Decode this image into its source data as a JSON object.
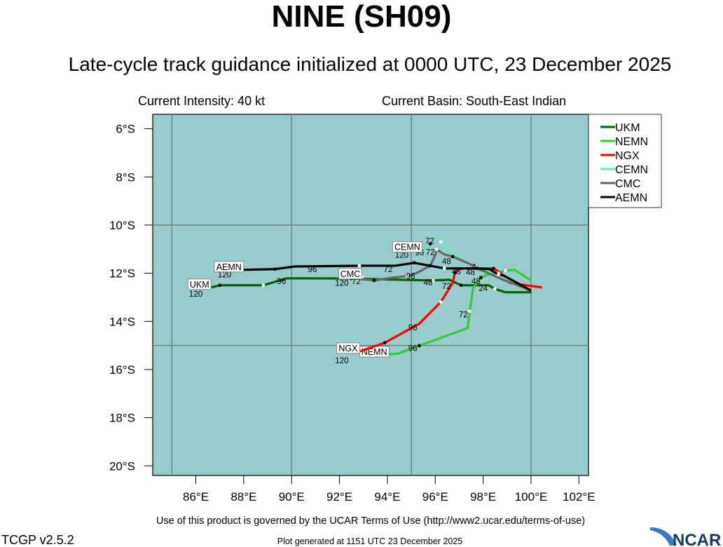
{
  "title": "NINE (SH09)",
  "subtitle": "Late-cycle track guidance initialized at 0000 UTC, 23 December 2025",
  "intensity": "Current Intensity: 40 kt",
  "basin": "Current Basin: South-East Indian",
  "footer": {
    "terms": "Use of this product is governed by the UCAR Terms of Use (http://www2.ucar.edu/terms-of-use)",
    "version": "TCGP v2.5.2",
    "generated": "Plot generated at 1151 UTC   23 December 2025",
    "logo": "NCAR"
  },
  "colors": {
    "ocean": "#98cccc",
    "grid": "#6a7a7a"
  },
  "axes": {
    "lon_range": [
      84.2,
      102.4
    ],
    "lat_range": [
      5.4,
      20.4
    ],
    "lon_ticks": [
      "86°E",
      "88°E",
      "90°E",
      "92°E",
      "94°E",
      "96°E",
      "98°E",
      "100°E",
      "102°E"
    ],
    "lon_tick_values": [
      86,
      88,
      90,
      92,
      94,
      96,
      98,
      100,
      102
    ],
    "lat_ticks": [
      "6°S",
      "8°S",
      "10°S",
      "12°S",
      "14°S",
      "16°S",
      "18°S",
      "20°S"
    ],
    "lat_tick_values": [
      6,
      8,
      10,
      12,
      14,
      16,
      18,
      20
    ],
    "grid_lon": [
      85,
      90,
      95,
      100
    ],
    "grid_lat": [
      10,
      15
    ]
  },
  "tracks": [
    {
      "name": "UKM",
      "color": "#006400",
      "points": [
        [
          100.02,
          12.79
        ],
        [
          98.93,
          12.79
        ],
        [
          98.49,
          12.65
        ],
        [
          98.23,
          12.5
        ],
        [
          97.08,
          12.5
        ],
        [
          96.59,
          12.27
        ],
        [
          95.91,
          12.3
        ],
        [
          94.39,
          12.27
        ],
        [
          92.5,
          12.22
        ],
        [
          89.81,
          12.21
        ],
        [
          88.82,
          12.5
        ],
        [
          88.11,
          12.5
        ],
        [
          87.0,
          12.5
        ],
        [
          86.65,
          12.59
        ]
      ],
      "labels": [
        {
          "text": "24",
          "lon": 98.0,
          "lat": 12.63
        },
        {
          "text": "48",
          "lon": 95.7,
          "lat": 12.38
        },
        {
          "text": "96",
          "lon": 89.58,
          "lat": 12.33
        },
        {
          "text": "120",
          "lon": 86.0,
          "lat": 12.85
        }
      ]
    },
    {
      "name": "NEMN",
      "color": "#33cc33",
      "points": [
        [
          100.0,
          12.3
        ],
        [
          99.31,
          11.86
        ],
        [
          98.93,
          11.89
        ],
        [
          98.26,
          12.03
        ],
        [
          97.91,
          12.18
        ],
        [
          97.58,
          12.62
        ],
        [
          97.44,
          13.58
        ],
        [
          97.35,
          14.28
        ],
        [
          95.33,
          15.01
        ],
        [
          94.47,
          15.33
        ],
        [
          93.95,
          15.39
        ]
      ],
      "labels": [
        {
          "text": "48",
          "lon": 97.7,
          "lat": 12.33
        },
        {
          "text": "72",
          "lon": 97.17,
          "lat": 13.72
        },
        {
          "text": "96",
          "lon": 95.06,
          "lat": 15.12
        }
      ]
    },
    {
      "name": "NGX",
      "color": "#ff0000",
      "points": [
        [
          100.46,
          12.59
        ],
        [
          99.14,
          12.41
        ],
        [
          98.84,
          12.21
        ],
        [
          98.79,
          12.03
        ],
        [
          98.43,
          11.8
        ],
        [
          97.85,
          11.8
        ],
        [
          97.23,
          11.8
        ],
        [
          96.97,
          11.83
        ],
        [
          96.82,
          11.98
        ],
        [
          96.73,
          12.41
        ],
        [
          96.23,
          13.2
        ],
        [
          95.33,
          14.1
        ],
        [
          93.89,
          14.89
        ],
        [
          92.86,
          15.24
        ]
      ],
      "labels": [
        {
          "text": "48",
          "lon": 96.88,
          "lat": 11.93
        },
        {
          "text": "72",
          "lon": 96.47,
          "lat": 12.53
        },
        {
          "text": "96",
          "lon": 95.06,
          "lat": 14.25
        },
        {
          "text": "120",
          "lon": 92.1,
          "lat": 15.62
        }
      ]
    },
    {
      "name": "CEMN",
      "color": "#66e8b8",
      "points": [
        [
          100.0,
          12.72
        ],
        [
          99.14,
          12.38
        ],
        [
          98.64,
          12.0
        ],
        [
          98.02,
          11.89
        ],
        [
          97.61,
          11.69
        ],
        [
          96.97,
          11.39
        ],
        [
          96.23,
          10.7
        ],
        [
          96.03,
          10.49
        ],
        [
          95.79,
          10.78
        ],
        [
          95.62,
          10.99
        ],
        [
          95.33,
          11.04
        ]
      ],
      "labels": [
        {
          "text": "48",
          "lon": 96.47,
          "lat": 11.5
        },
        {
          "text": "72",
          "lon": 95.77,
          "lat": 10.66
        },
        {
          "text": "96",
          "lon": 95.35,
          "lat": 11.14
        },
        {
          "text": "120",
          "lon": 94.6,
          "lat": 11.24
        }
      ]
    },
    {
      "name": "CMC",
      "color": "#666666",
      "points": [
        [
          100.0,
          12.72
        ],
        [
          98.84,
          12.27
        ],
        [
          97.76,
          11.8
        ],
        [
          97.41,
          11.6
        ],
        [
          96.73,
          11.31
        ],
        [
          96.38,
          11.22
        ],
        [
          96.06,
          11.01
        ],
        [
          96.0,
          11.25
        ],
        [
          95.79,
          11.69
        ],
        [
          95.21,
          12.0
        ],
        [
          94.83,
          12.12
        ],
        [
          94.24,
          12.18
        ],
        [
          93.45,
          12.3
        ],
        [
          92.86,
          12.24
        ],
        [
          92.95,
          12.15
        ]
      ],
      "labels": [
        {
          "text": "72",
          "lon": 95.79,
          "lat": 11.13
        },
        {
          "text": "96",
          "lon": 94.97,
          "lat": 12.12
        },
        {
          "text": "72",
          "lon": 92.7,
          "lat": 12.33
        },
        {
          "text": "120",
          "lon": 92.1,
          "lat": 12.4
        }
      ]
    },
    {
      "name": "AEMN",
      "color": "#000000",
      "points": [
        [
          100.0,
          12.72
        ],
        [
          98.84,
          12.09
        ],
        [
          98.64,
          12.06
        ],
        [
          98.26,
          11.83
        ],
        [
          97.76,
          11.8
        ],
        [
          96.97,
          11.8
        ],
        [
          96.38,
          11.8
        ],
        [
          95.79,
          11.69
        ],
        [
          95.12,
          11.57
        ],
        [
          94.33,
          11.69
        ],
        [
          92.83,
          11.69
        ],
        [
          90.13,
          11.72
        ],
        [
          89.31,
          11.83
        ],
        [
          87.88,
          11.86
        ]
      ],
      "labels": [
        {
          "text": "48",
          "lon": 97.47,
          "lat": 11.95
        },
        {
          "text": "72",
          "lon": 94.03,
          "lat": 11.83
        },
        {
          "text": "96",
          "lon": 90.87,
          "lat": 11.83
        },
        {
          "text": "120",
          "lon": 87.2,
          "lat": 12.05
        }
      ]
    }
  ]
}
